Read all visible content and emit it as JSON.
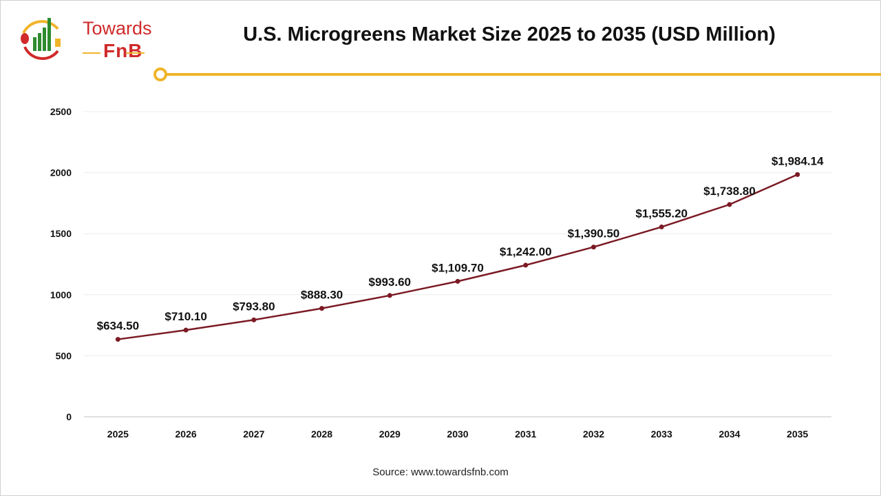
{
  "logo": {
    "line1": "Towards",
    "line2": "FnB"
  },
  "source": "Source: www.towardsfnb.com",
  "colors": {
    "line": "#7b1a24",
    "accent": "#f0b429",
    "brand_red": "#d02a2a",
    "brand_green": "#2e8b2e",
    "grid": "#ebebeb"
  },
  "chart_data": {
    "type": "line",
    "title": "U.S. Microgreens Market Size 2025 to 2035 (USD Million)",
    "xlabel": "",
    "ylabel": "",
    "categories": [
      "2025",
      "2026",
      "2027",
      "2028",
      "2029",
      "2030",
      "2031",
      "2032",
      "2033",
      "2034",
      "2035"
    ],
    "values": [
      634.5,
      710.1,
      793.8,
      888.3,
      993.6,
      1109.7,
      1242.0,
      1390.5,
      1555.2,
      1738.8,
      1984.14
    ],
    "data_labels": [
      "$634.50",
      "$710.10",
      "$793.80",
      "$888.30",
      "$993.60",
      "$1,109.70",
      "$1,242.00",
      "$1,390.50",
      "$1,555.20",
      "$1,738.80",
      "$1,984.14"
    ],
    "yticks": [
      0,
      500,
      1000,
      1500,
      2000,
      2500
    ],
    "ylim": [
      0,
      2500
    ],
    "grid": true,
    "legend": "none"
  }
}
